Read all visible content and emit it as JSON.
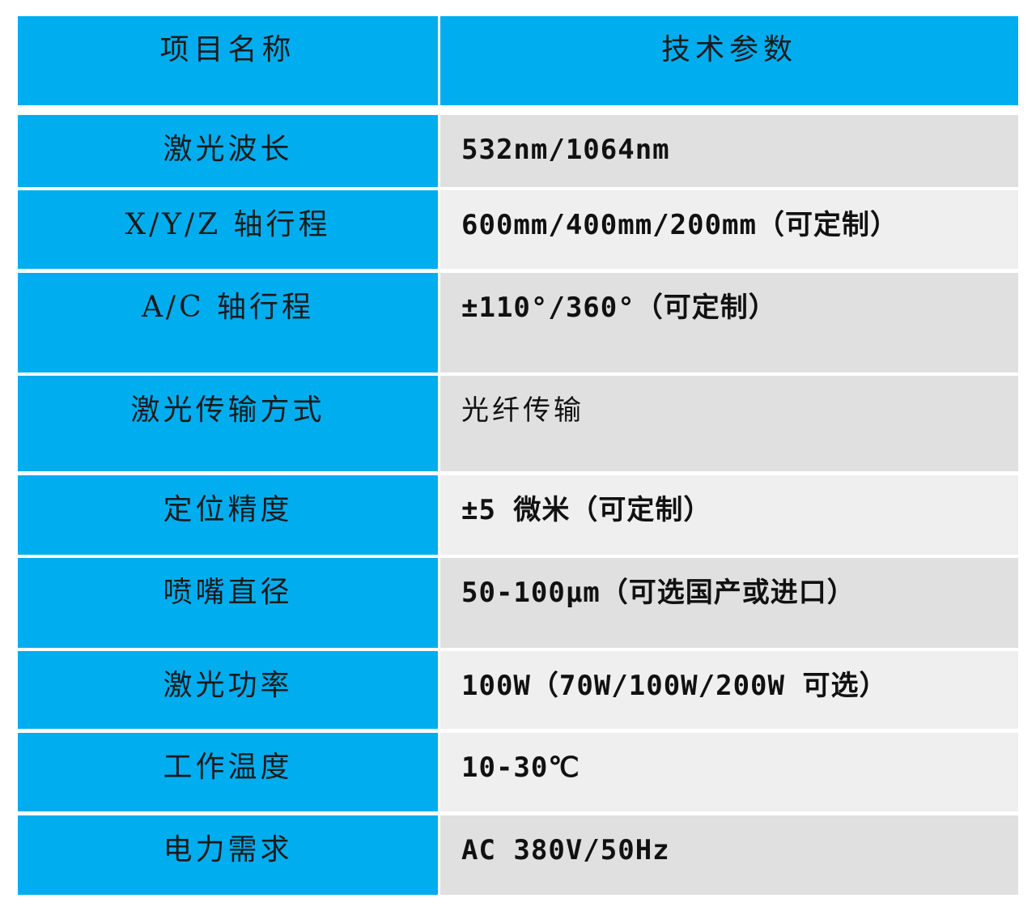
{
  "header": {
    "col1": "项目名称",
    "col2": "技术参数"
  },
  "rows": [
    {
      "label": "激光波长",
      "value": "532nm/1064nm"
    },
    {
      "label": "X/Y/Z 轴行程",
      "value": "600mm/400mm/200mm（可定制）"
    },
    {
      "label": "A/C 轴行程",
      "value": "±110°/360°（可定制）"
    },
    {
      "label": "激光传输方式",
      "value": "光纤传输"
    },
    {
      "label": "定位精度",
      "value": "±5 微米（可定制）"
    },
    {
      "label": "喷嘴直径",
      "value": "50-100μm（可选国产或进口）"
    },
    {
      "label": "激光功率",
      "value": "100W（70W/100W/200W 可选）"
    },
    {
      "label": "工作温度",
      "value": "10-30℃"
    },
    {
      "label": "电力需求",
      "value": "AC 380V/50Hz"
    }
  ],
  "colors": {
    "header_blue": "#00adef",
    "row_gray": "#e0e0e0",
    "row_light": "#efefef"
  }
}
